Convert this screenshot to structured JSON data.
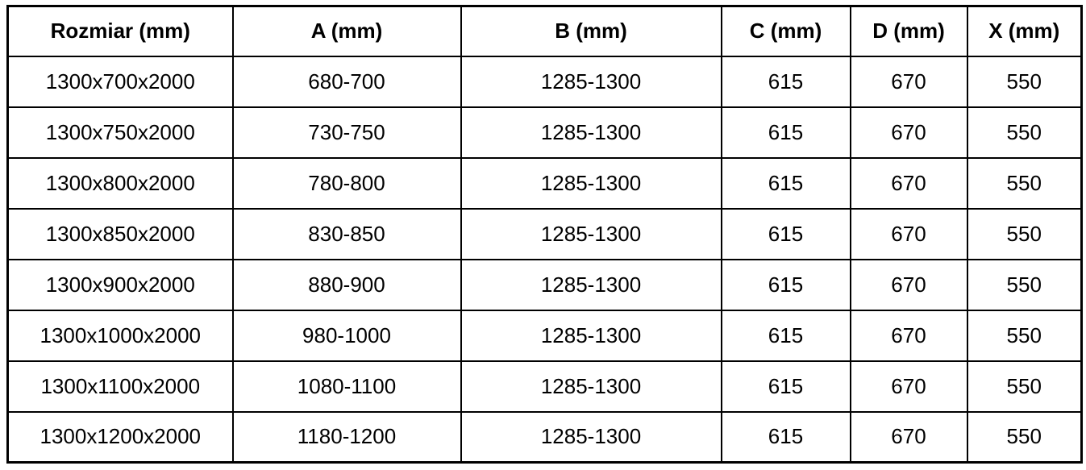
{
  "chart_data": {
    "type": "table",
    "columns": [
      "Rozmiar (mm)",
      "A (mm)",
      "B (mm)",
      "C (mm)",
      "D (mm)",
      "X (mm)"
    ],
    "rows": [
      [
        "1300x700x2000",
        "680-700",
        "1285-1300",
        "615",
        "670",
        "550"
      ],
      [
        "1300x750x2000",
        "730-750",
        "1285-1300",
        "615",
        "670",
        "550"
      ],
      [
        "1300x800x2000",
        "780-800",
        "1285-1300",
        "615",
        "670",
        "550"
      ],
      [
        "1300x850x2000",
        "830-850",
        "1285-1300",
        "615",
        "670",
        "550"
      ],
      [
        "1300x900x2000",
        "880-900",
        "1285-1300",
        "615",
        "670",
        "550"
      ],
      [
        "1300x1000x2000",
        "980-1000",
        "1285-1300",
        "615",
        "670",
        "550"
      ],
      [
        "1300x1100x2000",
        "1080-1100",
        "1285-1300",
        "615",
        "670",
        "550"
      ],
      [
        "1300x1200x2000",
        "1180-1200",
        "1285-1300",
        "615",
        "670",
        "550"
      ]
    ],
    "layout_hints": {
      "header_bold": true,
      "all_cells_centered": true,
      "grid": "full"
    }
  },
  "style": {
    "border_color": "#000000",
    "text_color": "#000000",
    "background_color": "#ffffff"
  }
}
